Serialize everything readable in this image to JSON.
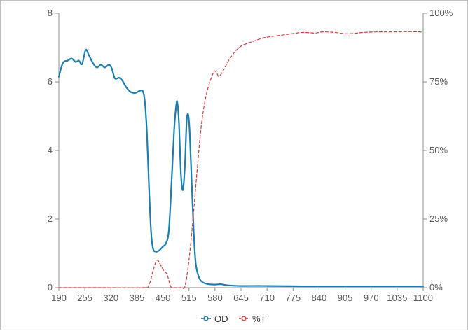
{
  "chart_data": {
    "type": "line",
    "xlim": [
      190,
      1100
    ],
    "x_ticks": [
      190,
      255,
      320,
      385,
      450,
      515,
      580,
      645,
      710,
      775,
      840,
      905,
      970,
      1035,
      1100
    ],
    "y_left": {
      "lim": [
        0,
        8
      ],
      "ticks": [
        0,
        2,
        4,
        6,
        8
      ],
      "tick_labels": [
        "0",
        "2",
        "4",
        "6",
        "8"
      ]
    },
    "y_right": {
      "lim": [
        0,
        100
      ],
      "ticks": [
        0,
        25,
        50,
        75,
        100
      ],
      "tick_labels": [
        "0%",
        "25%",
        "50%",
        "75%",
        "100%"
      ]
    },
    "grid": false,
    "legend_position": "bottom-center",
    "series": [
      {
        "name": "OD",
        "axis": "left",
        "color": "#1b7eb0",
        "style": "solid",
        "points": [
          [
            190,
            6.15
          ],
          [
            200,
            6.55
          ],
          [
            212,
            6.62
          ],
          [
            222,
            6.68
          ],
          [
            232,
            6.58
          ],
          [
            240,
            6.62
          ],
          [
            248,
            6.52
          ],
          [
            257,
            6.93
          ],
          [
            265,
            6.78
          ],
          [
            275,
            6.55
          ],
          [
            285,
            6.42
          ],
          [
            295,
            6.5
          ],
          [
            305,
            6.42
          ],
          [
            315,
            6.5
          ],
          [
            322,
            6.4
          ],
          [
            330,
            6.1
          ],
          [
            340,
            6.12
          ],
          [
            348,
            6.05
          ],
          [
            358,
            5.85
          ],
          [
            370,
            5.7
          ],
          [
            382,
            5.68
          ],
          [
            392,
            5.74
          ],
          [
            400,
            5.72
          ],
          [
            405,
            5.4
          ],
          [
            410,
            4.5
          ],
          [
            415,
            3.0
          ],
          [
            420,
            1.7
          ],
          [
            425,
            1.15
          ],
          [
            432,
            1.05
          ],
          [
            440,
            1.08
          ],
          [
            450,
            1.2
          ],
          [
            458,
            1.3
          ],
          [
            465,
            1.7
          ],
          [
            472,
            3.2
          ],
          [
            478,
            4.6
          ],
          [
            483,
            5.3
          ],
          [
            486,
            5.4
          ],
          [
            490,
            4.8
          ],
          [
            495,
            3.3
          ],
          [
            500,
            2.85
          ],
          [
            505,
            3.6
          ],
          [
            509,
            4.8
          ],
          [
            513,
            5.05
          ],
          [
            517,
            4.5
          ],
          [
            522,
            3.0
          ],
          [
            527,
            1.6
          ],
          [
            532,
            0.7
          ],
          [
            540,
            0.3
          ],
          [
            550,
            0.15
          ],
          [
            565,
            0.1
          ],
          [
            580,
            0.09
          ],
          [
            595,
            0.1
          ],
          [
            610,
            0.07
          ],
          [
            640,
            0.05
          ],
          [
            700,
            0.05
          ],
          [
            800,
            0.04
          ],
          [
            900,
            0.04
          ],
          [
            1000,
            0.04
          ],
          [
            1100,
            0.04
          ]
        ]
      },
      {
        "name": "%T",
        "axis": "right",
        "color": "#d63a3a",
        "style": "dashed",
        "points": [
          [
            190,
            0
          ],
          [
            300,
            0
          ],
          [
            400,
            0
          ],
          [
            415,
            1.0
          ],
          [
            425,
            6.0
          ],
          [
            435,
            10.0
          ],
          [
            445,
            8.0
          ],
          [
            453,
            6.0
          ],
          [
            460,
            5.0
          ],
          [
            465,
            2.5
          ],
          [
            470,
            0.3
          ],
          [
            478,
            0
          ],
          [
            495,
            0
          ],
          [
            505,
            0.5
          ],
          [
            515,
            10.0
          ],
          [
            525,
            25.0
          ],
          [
            535,
            42.0
          ],
          [
            545,
            58.0
          ],
          [
            555,
            68.0
          ],
          [
            565,
            74.0
          ],
          [
            575,
            78.0
          ],
          [
            580,
            79.0
          ],
          [
            585,
            78.0
          ],
          [
            590,
            77.0
          ],
          [
            600,
            79.0
          ],
          [
            615,
            83.0
          ],
          [
            630,
            86.0
          ],
          [
            645,
            88.0
          ],
          [
            660,
            89.0
          ],
          [
            680,
            90.0
          ],
          [
            700,
            91.0
          ],
          [
            720,
            91.5
          ],
          [
            745,
            92.0
          ],
          [
            770,
            92.5
          ],
          [
            800,
            93.0
          ],
          [
            830,
            92.8
          ],
          [
            850,
            93.2
          ],
          [
            880,
            93.0
          ],
          [
            910,
            92.5
          ],
          [
            950,
            93.0
          ],
          [
            990,
            93.2
          ],
          [
            1030,
            93.2
          ],
          [
            1060,
            93.3
          ],
          [
            1090,
            93.2
          ],
          [
            1100,
            93.0
          ]
        ]
      }
    ]
  },
  "legend": [
    {
      "name": "OD",
      "color": "#1b7eb0",
      "style": "solid"
    },
    {
      "name": "%T",
      "color": "#d63a3a",
      "style": "dashed"
    }
  ]
}
